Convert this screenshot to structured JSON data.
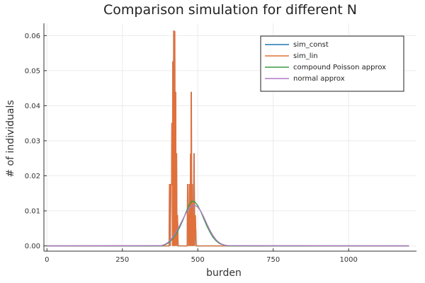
{
  "chart_data": {
    "type": "line",
    "title": "Comparison simulation for different N",
    "xlabel": "burden",
    "ylabel": "# of individuals",
    "xlim": [
      -10,
      1225
    ],
    "ylim": [
      -0.0015,
      0.0635
    ],
    "xticks": [
      0,
      250,
      500,
      750,
      1000
    ],
    "yticks": [
      0.0,
      0.01,
      0.02,
      0.03,
      0.04,
      0.05,
      0.06
    ],
    "xtick_labels": [
      "0",
      "250",
      "500",
      "750",
      "1000"
    ],
    "ytick_labels": [
      "0.00",
      "0.01",
      "0.02",
      "0.03",
      "0.04",
      "0.05",
      "0.06"
    ],
    "grid": true,
    "legend_position": "top-right",
    "series": [
      {
        "name": "sim_const",
        "color": "#1f77b4",
        "x": [
          0,
          400,
          405,
          406,
          408,
          409,
          411,
          413,
          414,
          415,
          416,
          417,
          418,
          419,
          420,
          421,
          422,
          423,
          424,
          425,
          426,
          427,
          428,
          429,
          430,
          431,
          433,
          435,
          437,
          440,
          460,
          465,
          466,
          468,
          469,
          470,
          471,
          472,
          473,
          474,
          475,
          476,
          477,
          478,
          479,
          480,
          481,
          482,
          483,
          484,
          485,
          486,
          487,
          488,
          490,
          492,
          495,
          1200
        ],
        "y": [
          0,
          0,
          0,
          0.0175,
          0.0175,
          0,
          0.0175,
          0.0175,
          0.035,
          0.035,
          0,
          0.0525,
          0.0525,
          0,
          0.0613,
          0.0613,
          0,
          0.0525,
          0.0613,
          0,
          0.0438,
          0.0438,
          0,
          0.0263,
          0.0263,
          0,
          0.0088,
          0,
          0,
          0,
          0,
          0,
          0.0175,
          0.0175,
          0,
          0.0088,
          0.0088,
          0,
          0.0175,
          0.0175,
          0,
          0.0263,
          0,
          0.0438,
          0.0438,
          0,
          0.0175,
          0.0175,
          0,
          0.0088,
          0.0088,
          0,
          0.0263,
          0.0263,
          0,
          0.0088,
          0,
          0
        ]
      },
      {
        "name": "sim_lin",
        "color": "#e2703a",
        "x": [
          0,
          400,
          405,
          406,
          408,
          409,
          411,
          413,
          414,
          415,
          416,
          417,
          418,
          419,
          420,
          421,
          422,
          423,
          424,
          425,
          426,
          427,
          428,
          429,
          430,
          431,
          433,
          435,
          437,
          440,
          460,
          465,
          466,
          468,
          469,
          470,
          471,
          472,
          473,
          474,
          475,
          476,
          477,
          478,
          479,
          480,
          481,
          482,
          483,
          484,
          485,
          486,
          487,
          488,
          490,
          492,
          495,
          1200
        ],
        "y": [
          0,
          0,
          0,
          0.0175,
          0.0175,
          0,
          0.0175,
          0.0175,
          0.035,
          0.035,
          0,
          0.0525,
          0.0525,
          0,
          0.0613,
          0.0613,
          0,
          0.0525,
          0.0613,
          0,
          0.0438,
          0.0438,
          0,
          0.0263,
          0.0263,
          0,
          0.0088,
          0,
          0,
          0,
          0,
          0,
          0.0175,
          0.0175,
          0,
          0.0088,
          0.0088,
          0,
          0.0175,
          0.0175,
          0,
          0.0263,
          0,
          0.0438,
          0.0438,
          0,
          0.0175,
          0.0175,
          0,
          0.0088,
          0.0088,
          0,
          0.0263,
          0.0263,
          0,
          0.0088,
          0,
          0
        ]
      },
      {
        "name": "compound Poisson approx",
        "color": "#3a9a44",
        "x": [
          0,
          380,
          390,
          400,
          410,
          420,
          430,
          440,
          450,
          460,
          470,
          480,
          490,
          500,
          510,
          520,
          530,
          540,
          550,
          560,
          570,
          580,
          590,
          600,
          1200
        ],
        "y": [
          0,
          0,
          0.0003,
          0.0007,
          0.0014,
          0.0024,
          0.0037,
          0.0053,
          0.0072,
          0.0094,
          0.0114,
          0.0128,
          0.0126,
          0.0115,
          0.0098,
          0.0077,
          0.0057,
          0.004,
          0.0025,
          0.0015,
          0.0008,
          0.0004,
          0.0002,
          0,
          0
        ]
      },
      {
        "name": "normal approx",
        "color": "#b07ac7",
        "x": [
          0,
          380,
          390,
          400,
          410,
          420,
          430,
          440,
          450,
          460,
          470,
          480,
          490,
          500,
          510,
          520,
          530,
          540,
          550,
          560,
          570,
          580,
          590,
          600,
          1200
        ],
        "y": [
          0,
          0.0001,
          0.0004,
          0.0009,
          0.0017,
          0.0028,
          0.0042,
          0.0058,
          0.0075,
          0.0092,
          0.0106,
          0.0114,
          0.0116,
          0.0111,
          0.0099,
          0.0082,
          0.0063,
          0.0045,
          0.003,
          0.0018,
          0.001,
          0.0005,
          0.0002,
          0.0001,
          0
        ]
      }
    ]
  }
}
